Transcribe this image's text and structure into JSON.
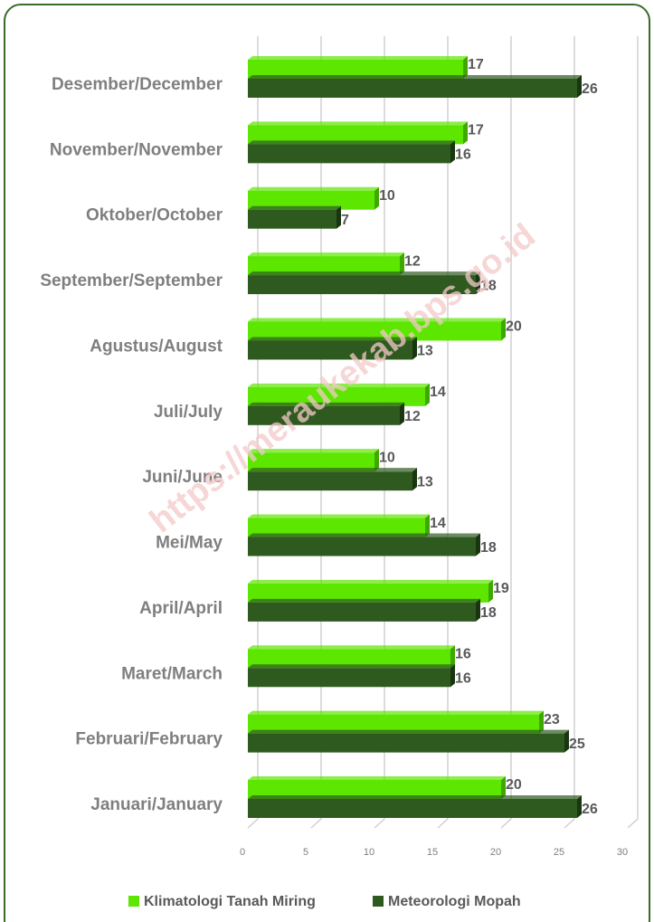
{
  "chart_data": {
    "type": "barh",
    "watermark": "https://meraukekab.bps.go.id",
    "categories": [
      "Januari/January",
      "Februari/February",
      "Maret/March",
      "April/April",
      "Mei/May",
      "Juni/June",
      "Juli/July",
      "Agustus/August",
      "September/September",
      "Oktober/October",
      "November/November",
      "Desember/December"
    ],
    "series": [
      {
        "name": "Klimatologi Tanah Miring",
        "color": "#5ce600",
        "values": [
          20,
          23,
          16,
          19,
          14,
          10,
          14,
          20,
          12,
          10,
          17,
          17
        ]
      },
      {
        "name": "Meteorologi Mopah",
        "color": "#2e5a1f",
        "values": [
          26,
          25,
          16,
          18,
          18,
          13,
          12,
          13,
          18,
          7,
          16,
          26
        ]
      }
    ],
    "xlim": [
      0,
      30
    ],
    "xticks": [
      0,
      5,
      10,
      15,
      20,
      25,
      30
    ],
    "grid": true,
    "legend": "bottom"
  }
}
